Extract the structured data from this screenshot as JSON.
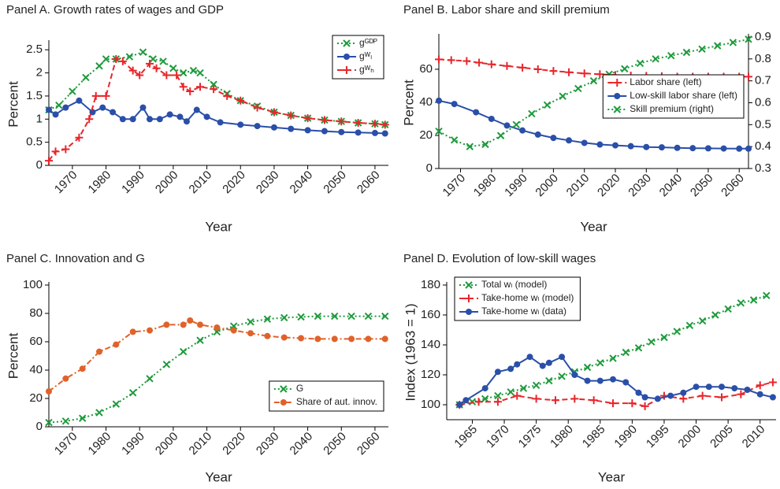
{
  "chart_data": [
    {
      "type": "line",
      "title": "Panel A. Growth rates of wages and GDP",
      "xlabel": "Year",
      "ylabel": "Percent",
      "xlim": [
        1963,
        2064
      ],
      "xticks": [
        1970,
        1980,
        1990,
        2000,
        2010,
        2020,
        2030,
        2040,
        2050,
        2060
      ],
      "ylim": [
        0,
        2.64
      ],
      "yticks": [
        0,
        0.5,
        1,
        1.5,
        2,
        2.5
      ],
      "legend": "upper right",
      "series": [
        {
          "name": "gᴳᴰᴾ",
          "color": "#1e9a3c",
          "linestyle": "dotted",
          "marker": "x",
          "x": [
            1963,
            1966,
            1970,
            1974,
            1978,
            1980,
            1983,
            1987,
            1991,
            1994,
            1997,
            2000,
            2003,
            2006,
            2008,
            2012,
            2016,
            2020,
            2025,
            2030,
            2035,
            2040,
            2045,
            2050,
            2055,
            2060,
            2063
          ],
          "values": [
            1.2,
            1.3,
            1.6,
            1.9,
            2.15,
            2.3,
            2.3,
            2.35,
            2.45,
            2.3,
            2.25,
            2.1,
            2.0,
            2.05,
            2.0,
            1.75,
            1.55,
            1.4,
            1.28,
            1.15,
            1.08,
            1.02,
            0.98,
            0.95,
            0.92,
            0.9,
            0.88
          ]
        },
        {
          "name": "gᵂₗ",
          "color": "#2a4fa8",
          "linestyle": "solid",
          "marker": "o",
          "x": [
            1963,
            1965,
            1968,
            1972,
            1976,
            1979,
            1982,
            1985,
            1988,
            1991,
            1993,
            1996,
            1999,
            2002,
            2004,
            2007,
            2010,
            2014,
            2020,
            2025,
            2030,
            2035,
            2040,
            2045,
            2050,
            2055,
            2060,
            2063
          ],
          "values": [
            1.2,
            1.1,
            1.25,
            1.4,
            1.15,
            1.25,
            1.15,
            1.0,
            1.0,
            1.25,
            1.0,
            1.0,
            1.1,
            1.05,
            0.95,
            1.2,
            1.05,
            0.93,
            0.88,
            0.85,
            0.82,
            0.79,
            0.76,
            0.74,
            0.72,
            0.71,
            0.7,
            0.69
          ]
        },
        {
          "name": "gᵂₕ",
          "color": "#e8262b",
          "linestyle": "dashed",
          "marker": "+",
          "x": [
            1963,
            1965,
            1968,
            1972,
            1975,
            1977,
            1980,
            1983,
            1985,
            1988,
            1990,
            1993,
            1995,
            1998,
            2001,
            2003,
            2005,
            2008,
            2012,
            2016,
            2020,
            2025,
            2030,
            2035,
            2040,
            2045,
            2050,
            2055,
            2060,
            2063
          ],
          "values": [
            0.1,
            0.3,
            0.35,
            0.6,
            1.0,
            1.5,
            1.5,
            2.3,
            2.25,
            2.05,
            1.95,
            2.2,
            2.1,
            1.95,
            1.95,
            1.7,
            1.6,
            1.7,
            1.65,
            1.5,
            1.4,
            1.25,
            1.15,
            1.08,
            1.02,
            0.98,
            0.95,
            0.92,
            0.9,
            0.88
          ]
        }
      ]
    },
    {
      "type": "line",
      "title": "Panel B. Labor share and skill premium",
      "xlabel": "Year",
      "ylabel": "Percent",
      "xlim": [
        1963,
        2063
      ],
      "xticks": [
        1970,
        1980,
        1990,
        2000,
        2010,
        2020,
        2030,
        2040,
        2050,
        2060
      ],
      "ylim": [
        0,
        79.5
      ],
      "yticks": [
        0,
        20,
        40,
        60
      ],
      "y2lim": [
        0.3,
        0.9
      ],
      "y2ticks": [
        0.3,
        0.4,
        0.5,
        0.6,
        0.7,
        0.8,
        0.9
      ],
      "legend": "center right",
      "series": [
        {
          "name": "Labor share (left)",
          "color": "#e8262b",
          "linestyle": "dashed",
          "marker": "+",
          "x": [
            1963,
            1967,
            1972,
            1976,
            1980,
            1985,
            1990,
            1995,
            2000,
            2005,
            2010,
            2015,
            2020,
            2025,
            2030,
            2035,
            2040,
            2045,
            2050,
            2055,
            2060,
            2063
          ],
          "values": [
            66,
            65.5,
            65,
            64,
            63,
            62,
            61,
            60,
            59,
            58.2,
            57.5,
            57,
            56.5,
            56.2,
            56,
            55.8,
            55.5,
            55.5,
            55.5,
            55.5,
            55.5,
            55.5
          ]
        },
        {
          "name": "Low-skill labor share (left)",
          "color": "#2a4fa8",
          "linestyle": "solid",
          "marker": "o",
          "x": [
            1963,
            1968,
            1975,
            1980,
            1985,
            1990,
            1995,
            2000,
            2005,
            2010,
            2015,
            2020,
            2025,
            2030,
            2035,
            2040,
            2045,
            2050,
            2055,
            2060,
            2063
          ],
          "values": [
            41,
            39,
            34,
            30,
            26,
            23,
            20.5,
            18.5,
            17,
            15.5,
            14.5,
            14,
            13.5,
            13,
            12.8,
            12.5,
            12.3,
            12.2,
            12.1,
            12,
            12
          ]
        },
        {
          "name": "Skill premium (right)",
          "color": "#1e9a3c",
          "linestyle": "dotted",
          "marker": "x",
          "axis": "y2",
          "x": [
            1963,
            1968,
            1973,
            1978,
            1983,
            1988,
            1993,
            1998,
            2003,
            2008,
            2013,
            2018,
            2023,
            2028,
            2033,
            2038,
            2043,
            2048,
            2053,
            2058,
            2063
          ],
          "values": [
            0.47,
            0.43,
            0.4,
            0.41,
            0.45,
            0.5,
            0.55,
            0.59,
            0.63,
            0.665,
            0.7,
            0.73,
            0.755,
            0.78,
            0.8,
            0.815,
            0.83,
            0.845,
            0.86,
            0.875,
            0.89
          ]
        }
      ]
    },
    {
      "type": "line",
      "title": "Panel C. Innovation and G",
      "xlabel": "Year",
      "ylabel": "Percent",
      "xlim": [
        1963,
        2064
      ],
      "xticks": [
        1970,
        1980,
        1990,
        2000,
        2010,
        2020,
        2030,
        2040,
        2050,
        2060
      ],
      "ylim": [
        0,
        100
      ],
      "yticks": [
        0,
        20,
        40,
        60,
        80,
        100
      ],
      "legend": "lower right",
      "series": [
        {
          "name": "G",
          "color": "#1e9a3c",
          "linestyle": "dotted",
          "marker": "x",
          "x": [
            1963,
            1968,
            1973,
            1978,
            1983,
            1988,
            1993,
            1998,
            2003,
            2008,
            2013,
            2018,
            2023,
            2028,
            2033,
            2038,
            2043,
            2048,
            2053,
            2058,
            2063
          ],
          "values": [
            3,
            4,
            6,
            10,
            16,
            24,
            34,
            44,
            53,
            61,
            67,
            71,
            74,
            76,
            77,
            77.5,
            78,
            78,
            78,
            78,
            78
          ]
        },
        {
          "name": "Share of aut. innov.",
          "color": "#e0622a",
          "linestyle": "dashdot",
          "marker": "o",
          "x": [
            1963,
            1968,
            1973,
            1978,
            1983,
            1988,
            1993,
            1998,
            2003,
            2005,
            2008,
            2013,
            2018,
            2023,
            2028,
            2033,
            2038,
            2043,
            2048,
            2053,
            2058,
            2063
          ],
          "values": [
            25,
            34,
            41,
            53,
            58,
            67,
            68,
            72,
            72,
            75,
            72,
            70,
            68,
            66,
            64,
            63,
            62.5,
            62,
            62,
            62,
            62,
            62
          ]
        }
      ]
    },
    {
      "type": "line",
      "title": "Panel D. Evolution of low-skill wages",
      "xlabel": "Year",
      "ylabel": "Index (1963 = 1)",
      "xlim": [
        1961,
        2012.5
      ],
      "xticks": [
        1965,
        1970,
        1975,
        1980,
        1985,
        1990,
        1995,
        2000,
        2005,
        2010
      ],
      "ylim": [
        90,
        180
      ],
      "yticks": [
        100,
        120,
        140,
        160,
        180
      ],
      "legend": "upper left",
      "series": [
        {
          "name": "Total wₗ (model)",
          "color": "#1e9a3c",
          "linestyle": "dotted",
          "marker": "x",
          "x": [
            1963,
            1965,
            1967,
            1969,
            1971,
            1973,
            1975,
            1977,
            1979,
            1981,
            1983,
            1985,
            1987,
            1989,
            1991,
            1993,
            1995,
            1997,
            1999,
            2001,
            2003,
            2005,
            2007,
            2009,
            2011
          ],
          "values": [
            100,
            102,
            104,
            106,
            108.5,
            111,
            113,
            116,
            119,
            122,
            125,
            128,
            131,
            135,
            138,
            142,
            145,
            149,
            153,
            156,
            160,
            164,
            168,
            170,
            173
          ]
        },
        {
          "name": "Take-home wₗ (model)",
          "color": "#e8262b",
          "linestyle": "dashed",
          "marker": "+",
          "x": [
            1963,
            1966,
            1969,
            1972,
            1975,
            1978,
            1981,
            1984,
            1987,
            1990,
            1992,
            1995,
            1998,
            2001,
            2004,
            2007,
            2010,
            2012
          ],
          "values": [
            100,
            102,
            102,
            106,
            104,
            103,
            104,
            103,
            101,
            101,
            99,
            106,
            104,
            106,
            105,
            107,
            113,
            115
          ]
        },
        {
          "name": "Take-home wₗ (data)",
          "color": "#2a4fa8",
          "linestyle": "solid",
          "marker": "o",
          "x": [
            1963,
            1964,
            1967,
            1969,
            1971,
            1972,
            1974,
            1976,
            1977,
            1979,
            1981,
            1983,
            1985,
            1987,
            1989,
            1991,
            1992,
            1994,
            1996,
            1998,
            2000,
            2002,
            2004,
            2006,
            2008,
            2010,
            2012
          ],
          "values": [
            100,
            103,
            111,
            122,
            124,
            127,
            132,
            126,
            128,
            132,
            120,
            116,
            116,
            117,
            115,
            108,
            105,
            104,
            106,
            108,
            112,
            112,
            112,
            111,
            110,
            107,
            105
          ]
        }
      ]
    }
  ]
}
